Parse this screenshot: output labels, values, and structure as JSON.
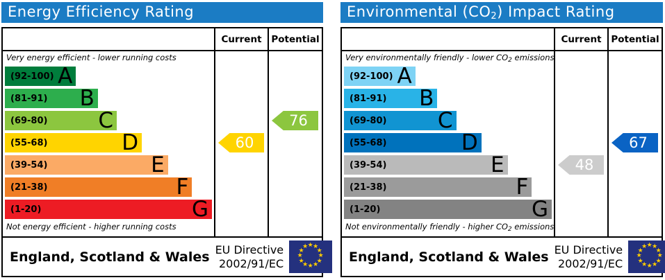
{
  "theme": {
    "header_bg": "#1b7cc4",
    "header_text": "#ffffff",
    "border": "#000000",
    "flag_bg": "#24317e",
    "flag_star": "#ffcc00"
  },
  "chart_data": [
    {
      "type": "bar",
      "title": "Energy Efficiency Rating",
      "subtitle_top": "Very energy efficient - lower running costs",
      "subtitle_bottom": "Not energy efficient - higher running costs",
      "categories": [
        "A (92-100)",
        "B (81-91)",
        "C (69-80)",
        "D (55-68)",
        "E (39-54)",
        "F (21-38)",
        "G (1-20)"
      ],
      "values": [
        34,
        44.5,
        53.5,
        65.5,
        78,
        89.5,
        99
      ],
      "current": 60,
      "current_band": "D",
      "potential": 76,
      "potential_band": "C",
      "region": "England, Scotland & Wales",
      "directive": "EU Directive 2002/91/EC"
    },
    {
      "type": "bar",
      "title": "Environmental (CO2) Impact Rating",
      "subtitle_top": "Very environmentally friendly - lower CO2 emissions",
      "subtitle_bottom": "Not environmentally friendly - higher CO2 emissions",
      "categories": [
        "A (92-100)",
        "B (81-91)",
        "C (69-80)",
        "D (55-68)",
        "E (39-54)",
        "F (21-38)",
        "G (1-20)"
      ],
      "values": [
        34,
        44.5,
        53.5,
        65.5,
        78,
        89.5,
        99
      ],
      "current": 48,
      "current_band": "E",
      "potential": 67,
      "potential_band": "D",
      "region": "England, Scotland & Wales",
      "directive": "EU Directive 2002/91/EC"
    }
  ],
  "panels": [
    {
      "title": {
        "pre": "Energy Efficiency Rating",
        "sub": "",
        "post": ""
      },
      "columns": {
        "current": "Current",
        "potential": "Potential"
      },
      "captions": {
        "top": {
          "pre": "Very energy efficient - lower running costs",
          "sub": "",
          "post": ""
        },
        "bottom": {
          "pre": "Not energy efficient - higher running costs",
          "sub": "",
          "post": ""
        }
      },
      "bands": [
        {
          "range": "(92-100)",
          "letter": "A",
          "color": "#007d3c",
          "width_pct": 34
        },
        {
          "range": "(81-91)",
          "letter": "B",
          "color": "#2dae4d",
          "width_pct": 44.5
        },
        {
          "range": "(69-80)",
          "letter": "C",
          "color": "#8cc63f",
          "width_pct": 53.5
        },
        {
          "range": "(55-68)",
          "letter": "D",
          "color": "#ffd400",
          "width_pct": 65.5
        },
        {
          "range": "(39-54)",
          "letter": "E",
          "color": "#fbaa65",
          "width_pct": 78
        },
        {
          "range": "(21-38)",
          "letter": "F",
          "color": "#f07e26",
          "width_pct": 89.5
        },
        {
          "range": "(1-20)",
          "letter": "G",
          "color": "#ed1c24",
          "width_pct": 99
        }
      ],
      "current": {
        "value": "60",
        "color": "#ffd400",
        "band_index": 3
      },
      "potential": {
        "value": "76",
        "color": "#8cc63f",
        "band_index": 2
      },
      "footer": {
        "region": "England, Scotland & Wales",
        "directive_line1": "EU Directive",
        "directive_line2": "2002/91/EC"
      }
    },
    {
      "title": {
        "pre": "Environmental (CO",
        "sub": "2",
        "post": ") Impact Rating"
      },
      "columns": {
        "current": "Current",
        "potential": "Potential"
      },
      "captions": {
        "top": {
          "pre": "Very environmentally friendly - lower CO",
          "sub": "2",
          "post": " emissions"
        },
        "bottom": {
          "pre": "Not environmentally friendly - higher CO",
          "sub": "2",
          "post": " emissions"
        }
      },
      "bands": [
        {
          "range": "(92-100)",
          "letter": "A",
          "color": "#7ed3f5",
          "width_pct": 34
        },
        {
          "range": "(81-91)",
          "letter": "B",
          "color": "#29b3e7",
          "width_pct": 44.5
        },
        {
          "range": "(69-80)",
          "letter": "C",
          "color": "#1194d2",
          "width_pct": 53.5
        },
        {
          "range": "(55-68)",
          "letter": "D",
          "color": "#0072bc",
          "width_pct": 65.5
        },
        {
          "range": "(39-54)",
          "letter": "E",
          "color": "#bababa",
          "width_pct": 78
        },
        {
          "range": "(21-38)",
          "letter": "F",
          "color": "#9b9b9b",
          "width_pct": 89.5
        },
        {
          "range": "(1-20)",
          "letter": "G",
          "color": "#838383",
          "width_pct": 99
        }
      ],
      "current": {
        "value": "48",
        "color": "#cccccc",
        "band_index": 4
      },
      "potential": {
        "value": "67",
        "color": "#0a63c4",
        "band_index": 3
      },
      "footer": {
        "region": "England, Scotland & Wales",
        "directive_line1": "EU Directive",
        "directive_line2": "2002/91/EC"
      }
    }
  ]
}
